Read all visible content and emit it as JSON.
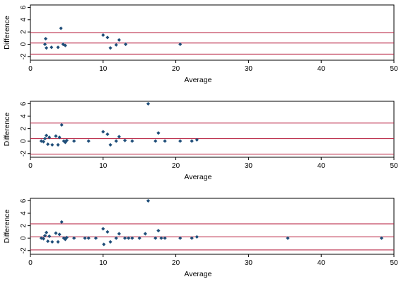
{
  "colors": {
    "background": "#ffffff",
    "plot_background": "#ffffff",
    "point": "#1f4e79",
    "limit_line": "#b5193a",
    "axis": "#000000"
  },
  "chart_data": [
    {
      "type": "scatter",
      "title": "",
      "xlabel": "Average",
      "ylabel": "Difference",
      "xlim": [
        0,
        50
      ],
      "ylim": [
        -2.6,
        6.4
      ],
      "xticks": [
        0,
        10,
        20,
        30,
        40,
        50
      ],
      "yticks": [
        -2,
        0,
        2,
        4,
        6
      ],
      "hlines": [
        1.9,
        0.2,
        -1.6
      ],
      "grid": false,
      "legend": "none",
      "points": [
        {
          "x": 2.0,
          "y": 0.0
        },
        {
          "x": 2.1,
          "y": 0.9
        },
        {
          "x": 2.2,
          "y": -0.6
        },
        {
          "x": 2.9,
          "y": -0.5
        },
        {
          "x": 3.8,
          "y": -0.5
        },
        {
          "x": 4.2,
          "y": 2.6
        },
        {
          "x": 4.5,
          "y": 0.0
        },
        {
          "x": 4.8,
          "y": -0.2
        },
        {
          "x": 10.0,
          "y": 1.5
        },
        {
          "x": 10.6,
          "y": 1.1
        },
        {
          "x": 11.0,
          "y": -0.6
        },
        {
          "x": 11.8,
          "y": -0.1
        },
        {
          "x": 12.2,
          "y": 0.7
        },
        {
          "x": 13.1,
          "y": 0.0
        },
        {
          "x": 20.6,
          "y": 0.0
        }
      ]
    },
    {
      "type": "scatter",
      "title": "",
      "xlabel": "Average",
      "ylabel": "Difference",
      "xlim": [
        0,
        50
      ],
      "ylim": [
        -2.6,
        6.4
      ],
      "xticks": [
        0,
        10,
        20,
        30,
        40,
        50
      ],
      "yticks": [
        -2,
        0,
        2,
        4,
        6
      ],
      "hlines": [
        2.9,
        0.4,
        -2.1
      ],
      "grid": false,
      "legend": "none",
      "points": [
        {
          "x": 1.5,
          "y": 0.0
        },
        {
          "x": 1.8,
          "y": -0.1
        },
        {
          "x": 2.0,
          "y": 0.4
        },
        {
          "x": 2.2,
          "y": 0.9
        },
        {
          "x": 2.4,
          "y": -0.5
        },
        {
          "x": 2.6,
          "y": 0.6
        },
        {
          "x": 3.0,
          "y": -0.6
        },
        {
          "x": 3.5,
          "y": 0.8
        },
        {
          "x": 3.8,
          "y": -0.6
        },
        {
          "x": 4.0,
          "y": 0.6
        },
        {
          "x": 4.3,
          "y": 2.6
        },
        {
          "x": 4.6,
          "y": 0.0
        },
        {
          "x": 4.8,
          "y": -0.2
        },
        {
          "x": 5.0,
          "y": 0.1
        },
        {
          "x": 6.0,
          "y": 0.0
        },
        {
          "x": 8.0,
          "y": 0.0
        },
        {
          "x": 10.0,
          "y": 1.5
        },
        {
          "x": 10.6,
          "y": 1.1
        },
        {
          "x": 11.0,
          "y": -0.6
        },
        {
          "x": 11.8,
          "y": 0.0
        },
        {
          "x": 12.2,
          "y": 0.7
        },
        {
          "x": 13.0,
          "y": 0.1
        },
        {
          "x": 14.0,
          "y": 0.0
        },
        {
          "x": 16.2,
          "y": 6.0
        },
        {
          "x": 17.2,
          "y": 0.0
        },
        {
          "x": 17.6,
          "y": 1.3
        },
        {
          "x": 18.5,
          "y": 0.0
        },
        {
          "x": 20.6,
          "y": 0.0
        },
        {
          "x": 22.2,
          "y": 0.0
        },
        {
          "x": 22.9,
          "y": 0.2
        }
      ]
    },
    {
      "type": "scatter",
      "title": "",
      "xlabel": "Average",
      "ylabel": "Difference",
      "xlim": [
        0,
        50
      ],
      "ylim": [
        -2.6,
        6.4
      ],
      "xticks": [
        0,
        10,
        20,
        30,
        40,
        50
      ],
      "yticks": [
        -2,
        0,
        2,
        4,
        6
      ],
      "hlines": [
        2.3,
        0.2,
        -1.9
      ],
      "grid": false,
      "legend": "none",
      "points": [
        {
          "x": 1.5,
          "y": 0.0
        },
        {
          "x": 1.8,
          "y": -0.1
        },
        {
          "x": 2.0,
          "y": 0.4
        },
        {
          "x": 2.2,
          "y": 0.9
        },
        {
          "x": 2.4,
          "y": -0.5
        },
        {
          "x": 2.6,
          "y": 0.3
        },
        {
          "x": 3.0,
          "y": -0.6
        },
        {
          "x": 3.5,
          "y": 0.8
        },
        {
          "x": 3.8,
          "y": -0.6
        },
        {
          "x": 4.0,
          "y": 0.6
        },
        {
          "x": 4.3,
          "y": 2.6
        },
        {
          "x": 4.6,
          "y": 0.0
        },
        {
          "x": 4.8,
          "y": -0.2
        },
        {
          "x": 5.0,
          "y": 0.1
        },
        {
          "x": 6.0,
          "y": 0.0
        },
        {
          "x": 7.5,
          "y": 0.0
        },
        {
          "x": 8.0,
          "y": 0.0
        },
        {
          "x": 9.0,
          "y": 0.0
        },
        {
          "x": 10.0,
          "y": 1.5
        },
        {
          "x": 10.1,
          "y": -1.0
        },
        {
          "x": 10.6,
          "y": 1.0
        },
        {
          "x": 11.0,
          "y": -0.6
        },
        {
          "x": 11.8,
          "y": 0.0
        },
        {
          "x": 12.2,
          "y": 0.7
        },
        {
          "x": 13.0,
          "y": 0.0
        },
        {
          "x": 13.5,
          "y": 0.0
        },
        {
          "x": 14.0,
          "y": 0.0
        },
        {
          "x": 15.0,
          "y": 0.0
        },
        {
          "x": 15.8,
          "y": 0.7
        },
        {
          "x": 16.2,
          "y": 6.0
        },
        {
          "x": 17.2,
          "y": 0.0
        },
        {
          "x": 17.6,
          "y": 1.2
        },
        {
          "x": 18.0,
          "y": 0.0
        },
        {
          "x": 18.5,
          "y": 0.0
        },
        {
          "x": 20.6,
          "y": 0.0
        },
        {
          "x": 22.2,
          "y": 0.0
        },
        {
          "x": 22.9,
          "y": 0.2
        },
        {
          "x": 35.4,
          "y": 0.0
        },
        {
          "x": 48.3,
          "y": 0.0
        }
      ]
    }
  ]
}
